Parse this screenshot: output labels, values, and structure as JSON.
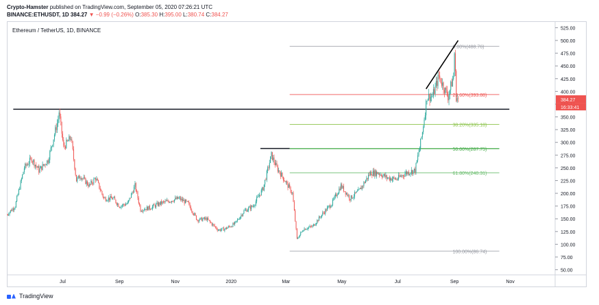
{
  "header": {
    "author": "Crypto-Hamster",
    "published": "published on TradingView.com, September 05, 2020 07:26:21 UTC",
    "symbol": "BINANCE:ETHUSDT, 1D",
    "last": "384.27",
    "change": "−0.99 (−0.26%)",
    "o_label": "O:",
    "o": "385.30",
    "h_label": "H:",
    "h": "395.00",
    "l_label": "L:",
    "l": "380.74",
    "c_label": "C:",
    "c": "384.27"
  },
  "footer": {
    "brand": "TradingView"
  },
  "colors": {
    "up": "#26a69a",
    "down": "#ef5350",
    "fib_base": "#9598a1",
    "fib_236": "#ef5350",
    "fib_382": "#8bc34a",
    "fib_50": "#4caf50",
    "fib_618": "#66bb6a",
    "trendline": "#000000",
    "price_tag": "#ef5350",
    "timer_tag": "#ef5350"
  },
  "chart_data": {
    "type": "candlestick",
    "title": "Ethereum / TetherUS, 1D, BINANCE",
    "y_axis": {
      "ticks": [
        525,
        500,
        475,
        450,
        425,
        400,
        375,
        350,
        325,
        300,
        275,
        250,
        225,
        200,
        175,
        150,
        125,
        100,
        75,
        50
      ],
      "tick_labels": [
        "525.00",
        "500.00",
        "475.00",
        "450.00",
        "425.00",
        "400.00",
        "375.00",
        "350.00",
        "325.00",
        "300.00",
        "275.00",
        "250.00",
        "225.00",
        "200.00",
        "175.00",
        "150.00",
        "125.00",
        "100.00",
        "75.00",
        "50.00"
      ],
      "ylim": [
        40,
        535
      ]
    },
    "x_axis": {
      "labels": [
        "Jul",
        "Sep",
        "Nov",
        "2020",
        "Mar",
        "May",
        "Jul",
        "Sep",
        "Nov"
      ],
      "label_dates": [
        "2019-07-01",
        "2019-09-01",
        "2019-11-01",
        "2020-01-01",
        "2020-03-01",
        "2020-05-01",
        "2020-07-01",
        "2020-09-01",
        "2020-11-01"
      ],
      "xlim": [
        "2019-05-01",
        "2020-12-20"
      ]
    },
    "series_path": [
      [
        "2019-05-01",
        158
      ],
      [
        "2019-05-10",
        175
      ],
      [
        "2019-05-20",
        250
      ],
      [
        "2019-05-28",
        268
      ],
      [
        "2019-06-05",
        245
      ],
      [
        "2019-06-15",
        265
      ],
      [
        "2019-06-26",
        345
      ],
      [
        "2019-06-27",
        360
      ],
      [
        "2019-07-02",
        290
      ],
      [
        "2019-07-10",
        310
      ],
      [
        "2019-07-16",
        225
      ],
      [
        "2019-07-20",
        235
      ],
      [
        "2019-07-30",
        215
      ],
      [
        "2019-08-06",
        230
      ],
      [
        "2019-08-15",
        190
      ],
      [
        "2019-08-25",
        190
      ],
      [
        "2019-09-01",
        175
      ],
      [
        "2019-09-10",
        180
      ],
      [
        "2019-09-18",
        215
      ],
      [
        "2019-09-24",
        168
      ],
      [
        "2019-10-05",
        172
      ],
      [
        "2019-10-15",
        180
      ],
      [
        "2019-10-25",
        185
      ],
      [
        "2019-11-05",
        190
      ],
      [
        "2019-11-15",
        180
      ],
      [
        "2019-11-25",
        148
      ],
      [
        "2019-12-05",
        150
      ],
      [
        "2019-12-18",
        128
      ],
      [
        "2019-12-25",
        130
      ],
      [
        "2020-01-05",
        140
      ],
      [
        "2020-01-15",
        165
      ],
      [
        "2020-01-25",
        175
      ],
      [
        "2020-02-05",
        210
      ],
      [
        "2020-02-14",
        275
      ],
      [
        "2020-02-20",
        250
      ],
      [
        "2020-02-27",
        230
      ],
      [
        "2020-03-08",
        200
      ],
      [
        "2020-03-13",
        110
      ],
      [
        "2020-03-20",
        130
      ],
      [
        "2020-03-30",
        135
      ],
      [
        "2020-04-10",
        160
      ],
      [
        "2020-04-20",
        180
      ],
      [
        "2020-04-30",
        215
      ],
      [
        "2020-05-10",
        190
      ],
      [
        "2020-05-20",
        205
      ],
      [
        "2020-06-01",
        240
      ],
      [
        "2020-06-10",
        240
      ],
      [
        "2020-06-20",
        230
      ],
      [
        "2020-06-30",
        228
      ],
      [
        "2020-07-10",
        240
      ],
      [
        "2020-07-20",
        245
      ],
      [
        "2020-07-25",
        290
      ],
      [
        "2020-07-28",
        320
      ],
      [
        "2020-08-02",
        390
      ],
      [
        "2020-08-08",
        390
      ],
      [
        "2020-08-15",
        430
      ],
      [
        "2020-08-20",
        410
      ],
      [
        "2020-08-25",
        390
      ],
      [
        "2020-08-31",
        430
      ],
      [
        "2020-09-01",
        476
      ],
      [
        "2020-09-03",
        390
      ],
      [
        "2020-09-05",
        384
      ]
    ],
    "horizontal_levels": [
      {
        "price": 365,
        "from": "2019-05-08",
        "to": "2020-10-31",
        "color": "#131722"
      },
      {
        "price": 288,
        "from": "2020-02-02",
        "to": "2020-03-05",
        "color": "#131722"
      }
    ],
    "fib_levels": [
      {
        "ratio": "0.00%",
        "price": 488.76,
        "label": "0.00%(488.76)",
        "color": "#9598a1"
      },
      {
        "ratio": "23.60%",
        "price": 393.88,
        "label": "23.60%(393.88)",
        "color": "#ef5350"
      },
      {
        "ratio": "38.20%",
        "price": 335.18,
        "label": "38.20%(335.18)",
        "color": "#8bc34a"
      },
      {
        "ratio": "50.00%",
        "price": 287.75,
        "label": "50.00%(287.75)",
        "color": "#4caf50"
      },
      {
        "ratio": "61.80%",
        "price": 240.31,
        "label": "61.80%(240.31)",
        "color": "#66bb6a"
      },
      {
        "ratio": "100.00%",
        "price": 86.74,
        "label": "100.00%(86.74)",
        "color": "#9598a1"
      }
    ],
    "fib_range": [
      "2020-03-05",
      "2020-10-20"
    ],
    "trendline": {
      "from": [
        "2020-08-01",
        405
      ],
      "to": [
        "2020-09-05",
        500
      ]
    },
    "last_price": {
      "price": 384.27,
      "label": "384.27"
    },
    "countdown": {
      "label": "16:33:41"
    }
  }
}
